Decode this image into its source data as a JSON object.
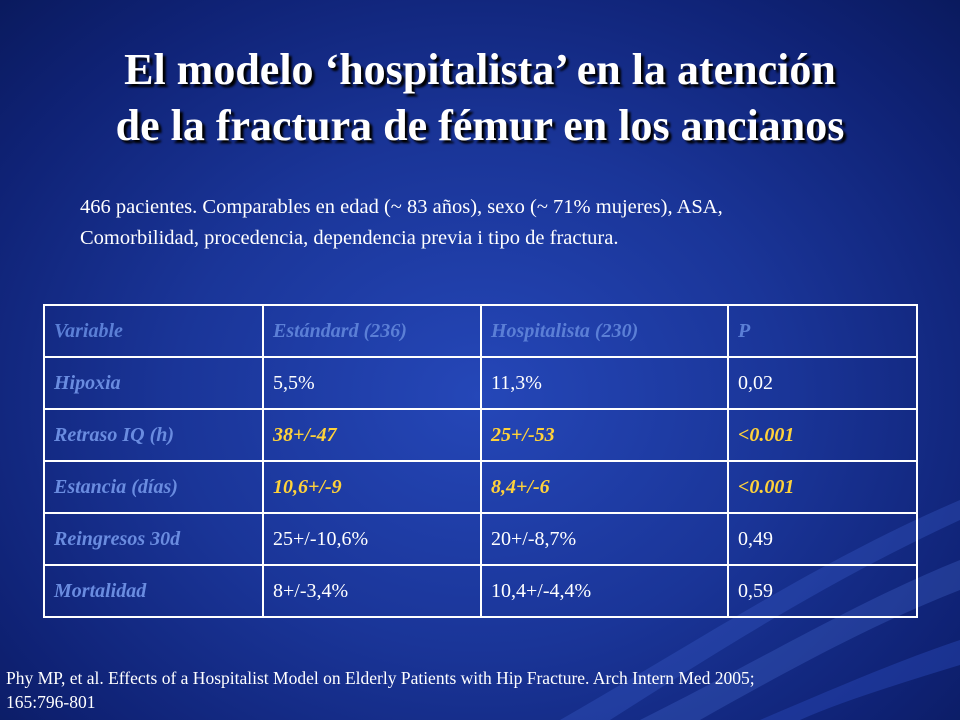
{
  "slide": {
    "title_line1": "El modelo ‘hospitalista’ en la atención",
    "title_line2": "de la fractura de fémur en los ancianos",
    "subtitle_line1": "466 pacientes. Comparables en edad (~ 83 años), sexo (~ 71% mujeres), ASA,",
    "subtitle_line2": "Comorbilidad, procedencia, dependencia previa i tipo de fractura.",
    "reference_line1": "Phy MP, et al. Effects of a Hospitalist Model on Elderly Patients with Hip Fracture. Arch Intern Med 2005;",
    "reference_line2": "165:796-801"
  },
  "colors": {
    "background": "#1a3598",
    "header_text": "#5b7fd6",
    "label_text": "#6a8ce0",
    "highlight_text": "#ffd23a",
    "body_text": "#ffffff"
  },
  "table": {
    "headers": [
      "Variable",
      "Estándard (236)",
      "Hospitalista (230)",
      "P"
    ],
    "rows": [
      {
        "variable": "Hipoxia",
        "estandard": "5,5%",
        "hospitalista": "11,3%",
        "p": "0,02",
        "highlight": false
      },
      {
        "variable": "Retraso IQ (h)",
        "estandard": "38+/-47",
        "hospitalista": "25+/-53",
        "p": "<0.001",
        "highlight": true
      },
      {
        "variable": "Estancia (días)",
        "estandard": "10,6+/-9",
        "hospitalista": "8,4+/-6",
        "p": "<0.001",
        "highlight": true
      },
      {
        "variable": "Reingresos 30d",
        "estandard": "25+/-10,6%",
        "hospitalista": "20+/-8,7%",
        "p": "0,49",
        "highlight": false
      },
      {
        "variable": "Mortalidad",
        "estandard": "8+/-3,4%",
        "hospitalista": "10,4+/-4,4%",
        "p": "0,59",
        "highlight": false
      }
    ]
  }
}
